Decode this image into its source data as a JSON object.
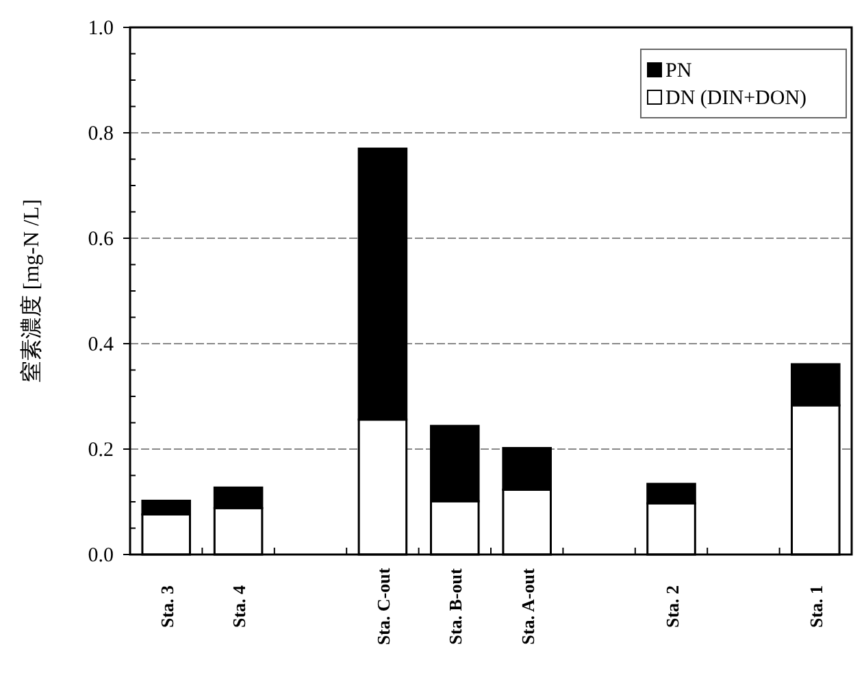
{
  "chart_data": {
    "type": "bar",
    "ylabel": "窒素濃度 [mg-N /L]",
    "stacked": true,
    "grid": "y",
    "legend": "top right",
    "categories": [
      "Sta. 3",
      "Sta. 4",
      null,
      "Sta. C-out",
      "Sta. B-out",
      "Sta. A-out",
      null,
      "Sta. 2",
      null,
      "Sta. 1"
    ],
    "series": [
      {
        "name": "DN (DIN+DON)",
        "color": "#ffffff",
        "values": [
          0.076,
          0.088,
          null,
          0.256,
          0.101,
          0.123,
          null,
          0.097,
          null,
          0.283
        ]
      },
      {
        "name": "PN",
        "color": "#000000",
        "values": [
          0.026,
          0.039,
          null,
          0.514,
          0.143,
          0.079,
          null,
          0.037,
          null,
          0.078
        ]
      }
    ],
    "ylim": [
      0,
      1.0
    ],
    "yticks": [
      {
        "value": 0,
        "label": "0.0"
      },
      {
        "value": 0.2,
        "label": "0.2"
      },
      {
        "value": 0.4,
        "label": "0.4"
      },
      {
        "value": 0.6,
        "label": "0.6"
      },
      {
        "value": 0.8,
        "label": "0.8"
      },
      {
        "value": 1.0,
        "label": "1.0"
      }
    ]
  }
}
